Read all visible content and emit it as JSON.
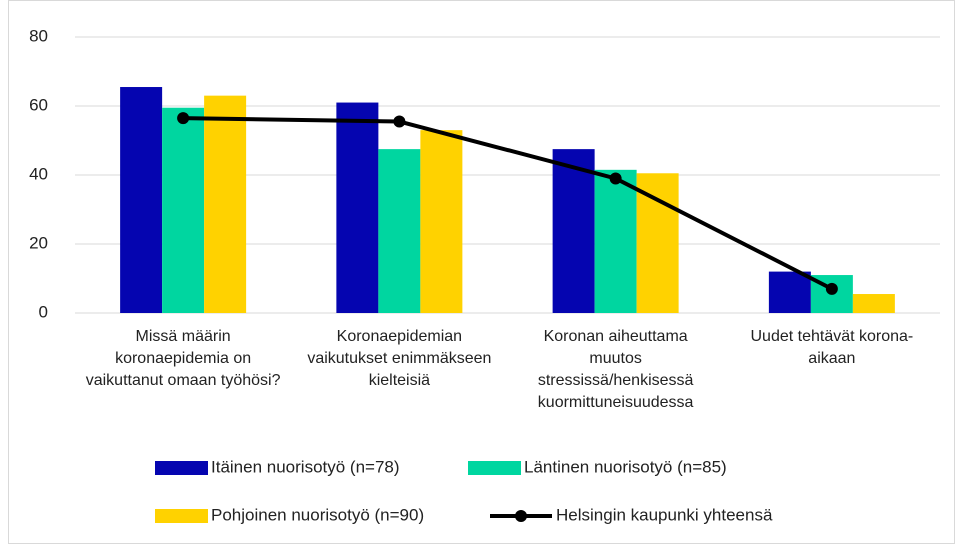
{
  "chart_data": {
    "type": "bar",
    "categories": [
      "Missä määrin koronaepidemia on vaikuttanut omaan työhösi?",
      "Koronaepidemian vaikutukset enimmäkseen kielteisiä",
      "Koronan aiheuttama muutos stressissä/henkisessä kuormittuneisuudessa",
      "Uudet tehtävät korona-aikaan"
    ],
    "series": [
      {
        "name": "Itäinen nuorisotyö (n=78)",
        "color": "#0505b0",
        "values": [
          65.5,
          61,
          47.5,
          12
        ]
      },
      {
        "name": "Läntinen nuorisotyö (n=85)",
        "color": "#00d6a0",
        "values": [
          59.5,
          47.5,
          41.5,
          11
        ]
      },
      {
        "name": "Pohjoinen nuorisotyö (n=90)",
        "color": "#ffd200",
        "values": [
          63,
          53,
          40.5,
          5.5
        ]
      },
      {
        "name": "Helsingin kaupunki yhteensä",
        "color": "#000000",
        "type": "line",
        "values": [
          56.5,
          55.5,
          39,
          7
        ]
      }
    ],
    "ylim": [
      0,
      80
    ],
    "yticks": [
      0,
      20,
      40,
      60,
      80
    ],
    "grid": true,
    "legend": "bottom"
  }
}
